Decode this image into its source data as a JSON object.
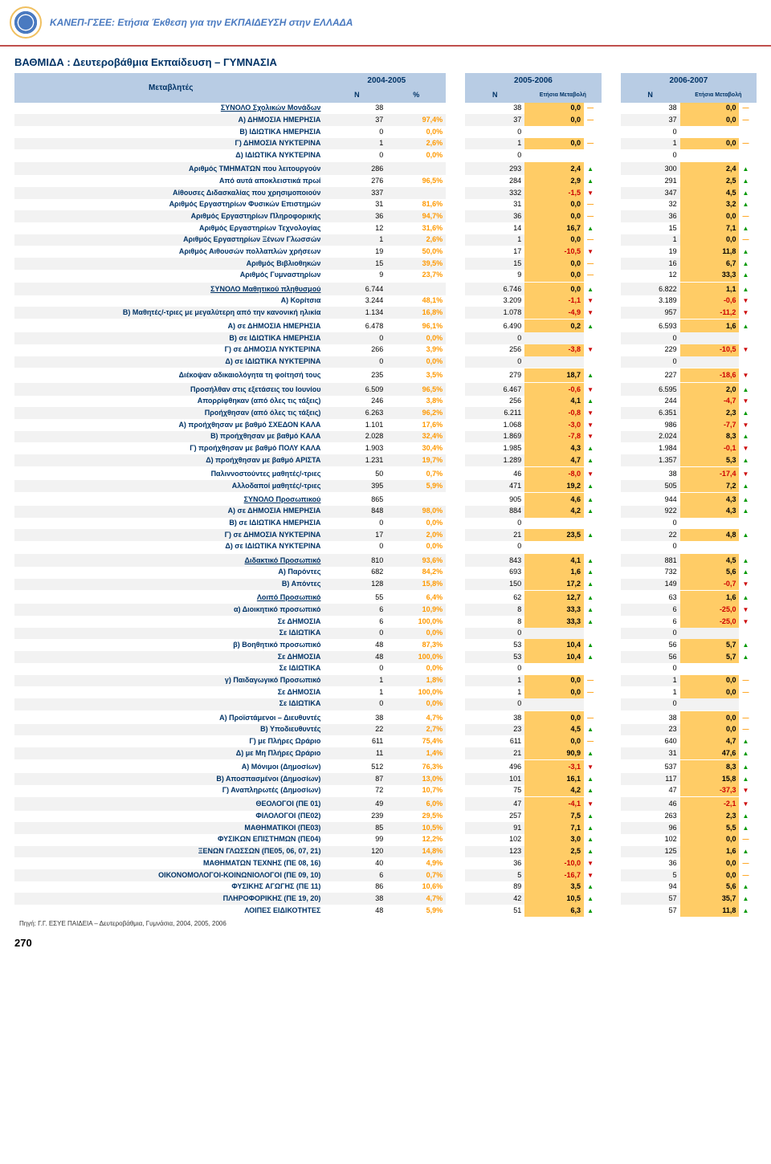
{
  "header_title": "ΚΑΝΕΠ-ΓΣΕΕ: Ετήσια Έκθεση για την ΕΚΠΑΙΔΕΥΣΗ στην ΕΛΛΑΔΑ",
  "section_title": "ΒΑΘΜΙΔΑ :  Δευτεροβάθμια Εκπαίδευση – ΓΥΜΝΑΣΙΑ",
  "meta_label": "Μεταβλητές",
  "years": [
    "2004-2005",
    "2005-2006",
    "2006-2007"
  ],
  "sub_headers": [
    "Ν",
    "%",
    "Ν",
    "Ετήσια Μεταβολή",
    "Ν",
    "Ετήσια Μεταβολή"
  ],
  "source": "Πηγή: Γ.Γ. ΕΣΥΕ ΠΑΙΔΕΙΑ – Δευτεροβάθμια, Γυμνάσια, 2004, 2005, 2006",
  "page_number": "270",
  "rows": [
    {
      "l": "ΣΥΝΟΛΟ Σχολικών Μονάδων",
      "u": 1,
      "n1": "38",
      "p1": "",
      "n2": "38",
      "c2": "0,0",
      "a2": "f",
      "n3": "38",
      "c3": "0,0",
      "a3": "f"
    },
    {
      "l": "Α) ΔΗΜΟΣΙΑ ΗΜΕΡΗΣΙΑ",
      "n1": "37",
      "p1": "97,4%",
      "n2": "37",
      "c2": "0,0",
      "a2": "f",
      "n3": "37",
      "c3": "0,0",
      "a3": "f"
    },
    {
      "l": "Β) ΙΔΙΩΤΙΚΑ ΗΜΕΡΗΣΙΑ",
      "n1": "0",
      "p1": "0,0%",
      "n2": "0",
      "c2": "",
      "a2": "",
      "n3": "0",
      "c3": "",
      "a3": ""
    },
    {
      "l": "Γ) ΔΗΜΟΣΙΑ ΝΥΚΤΕΡΙΝΑ",
      "n1": "1",
      "p1": "2,6%",
      "n2": "1",
      "c2": "0,0",
      "a2": "f",
      "n3": "1",
      "c3": "0,0",
      "a3": "f"
    },
    {
      "l": "Δ) ΙΔΙΩΤΙΚΑ ΝΥΚΤΕΡΙΝΑ",
      "n1": "0",
      "p1": "0,0%",
      "n2": "0",
      "c2": "",
      "a2": "",
      "n3": "0",
      "c3": "",
      "a3": ""
    },
    {
      "l": "Αριθμός ΤΜΗΜΑΤΩΝ που λειτουργούν",
      "g": 1,
      "n1": "286",
      "p1": "",
      "n2": "293",
      "c2": "2,4",
      "a2": "u",
      "n3": "300",
      "c3": "2,4",
      "a3": "u"
    },
    {
      "l": "Από αυτά αποκλειστικά πρωί",
      "n1": "276",
      "p1": "96,5%",
      "n2": "284",
      "c2": "2,9",
      "a2": "u",
      "n3": "291",
      "c3": "2,5",
      "a3": "u"
    },
    {
      "l": "Αίθουσες Διδασκαλίας που χρησιμοποιούν",
      "n1": "337",
      "p1": "",
      "n2": "332",
      "c2": "-1,5",
      "a2": "d",
      "n3": "347",
      "c3": "4,5",
      "a3": "u"
    },
    {
      "l": "Αριθμός Εργαστηρίων Φυσικών Επιστημών",
      "n1": "31",
      "p1": "81,6%",
      "n2": "31",
      "c2": "0,0",
      "a2": "f",
      "n3": "32",
      "c3": "3,2",
      "a3": "u"
    },
    {
      "l": "Αριθμός Εργαστηρίων Πληροφορικής",
      "n1": "36",
      "p1": "94,7%",
      "n2": "36",
      "c2": "0,0",
      "a2": "f",
      "n3": "36",
      "c3": "0,0",
      "a3": "f"
    },
    {
      "l": "Αριθμός Εργαστηρίων Τεχνολογίας",
      "n1": "12",
      "p1": "31,6%",
      "n2": "14",
      "c2": "16,7",
      "a2": "u",
      "n3": "15",
      "c3": "7,1",
      "a3": "u"
    },
    {
      "l": "Αριθμός Εργαστηρίων Ξένων Γλωσσών",
      "n1": "1",
      "p1": "2,6%",
      "n2": "1",
      "c2": "0,0",
      "a2": "f",
      "n3": "1",
      "c3": "0,0",
      "a3": "f"
    },
    {
      "l": "Αριθμός Αιθουσών πολλαπλών χρήσεων",
      "n1": "19",
      "p1": "50,0%",
      "n2": "17",
      "c2": "-10,5",
      "a2": "d",
      "n3": "19",
      "c3": "11,8",
      "a3": "u"
    },
    {
      "l": "Αριθμός Βιβλιοθηκών",
      "n1": "15",
      "p1": "39,5%",
      "n2": "15",
      "c2": "0,0",
      "a2": "f",
      "n3": "16",
      "c3": "6,7",
      "a3": "u"
    },
    {
      "l": "Αριθμός Γυμναστηρίων",
      "n1": "9",
      "p1": "23,7%",
      "n2": "9",
      "c2": "0,0",
      "a2": "f",
      "n3": "12",
      "c3": "33,3",
      "a3": "u"
    },
    {
      "l": "ΣΥΝΟΛΟ Μαθητικού πληθυσμού",
      "u": 1,
      "g": 1,
      "n1": "6.744",
      "p1": "",
      "n2": "6.746",
      "c2": "0,0",
      "a2": "u",
      "n3": "6.822",
      "c3": "1,1",
      "a3": "u"
    },
    {
      "l": "Α) Κορίτσια",
      "n1": "3.244",
      "p1": "48,1%",
      "n2": "3.209",
      "c2": "-1,1",
      "a2": "d",
      "n3": "3.189",
      "c3": "-0,6",
      "a3": "d"
    },
    {
      "l": "Β) Μαθητές/-τριες με μεγαλύτερη από την κανονική ηλικία",
      "n1": "1.134",
      "p1": "16,8%",
      "n2": "1.078",
      "c2": "-4,9",
      "a2": "d",
      "n3": "957",
      "c3": "-11,2",
      "a3": "d"
    },
    {
      "l": "Α) σε ΔΗΜΟΣΙΑ ΗΜΕΡΗΣΙΑ",
      "g": 1,
      "n1": "6.478",
      "p1": "96,1%",
      "n2": "6.490",
      "c2": "0,2",
      "a2": "u",
      "n3": "6.593",
      "c3": "1,6",
      "a3": "u"
    },
    {
      "l": "Β) σε ΙΔΙΩΤΙΚΑ ΗΜΕΡΗΣΙΑ",
      "n1": "0",
      "p1": "0,0%",
      "n2": "0",
      "c2": "",
      "a2": "",
      "n3": "0",
      "c3": "",
      "a3": ""
    },
    {
      "l": "Γ) σε ΔΗΜΟΣΙΑ ΝΥΚΤΕΡΙΝΑ",
      "n1": "266",
      "p1": "3,9%",
      "n2": "256",
      "c2": "-3,8",
      "a2": "d",
      "n3": "229",
      "c3": "-10,5",
      "a3": "d"
    },
    {
      "l": "Δ) σε ΙΔΙΩΤΙΚΑ ΝΥΚΤΕΡΙΝΑ",
      "n1": "0",
      "p1": "0,0%",
      "n2": "0",
      "c2": "",
      "a2": "",
      "n3": "0",
      "c3": "",
      "a3": ""
    },
    {
      "l": "Διέκοψαν αδικαιολόγητα τη φοίτησή τους",
      "g": 1,
      "n1": "235",
      "p1": "3,5%",
      "n2": "279",
      "c2": "18,7",
      "a2": "u",
      "n3": "227",
      "c3": "-18,6",
      "a3": "d"
    },
    {
      "l": "Προσήλθαν στις εξετάσεις του Ιουνίου",
      "g": 1,
      "n1": "6.509",
      "p1": "96,5%",
      "n2": "6.467",
      "c2": "-0,6",
      "a2": "d",
      "n3": "6.595",
      "c3": "2,0",
      "a3": "u"
    },
    {
      "l": "Απορρίφθηκαν (από όλες τις τάξεις)",
      "n1": "246",
      "p1": "3,8%",
      "n2": "256",
      "c2": "4,1",
      "a2": "u",
      "n3": "244",
      "c3": "-4,7",
      "a3": "d"
    },
    {
      "l": "Προήχθησαν (από όλες τις τάξεις)",
      "n1": "6.263",
      "p1": "96,2%",
      "n2": "6.211",
      "c2": "-0,8",
      "a2": "d",
      "n3": "6.351",
      "c3": "2,3",
      "a3": "u"
    },
    {
      "l": "Α) προήχθησαν με βαθμό ΣΧΕΔΟΝ ΚΑΛΑ",
      "n1": "1.101",
      "p1": "17,6%",
      "n2": "1.068",
      "c2": "-3,0",
      "a2": "d",
      "n3": "986",
      "c3": "-7,7",
      "a3": "d"
    },
    {
      "l": "Β) προήχθησαν με βαθμό ΚΑΛΑ",
      "n1": "2.028",
      "p1": "32,4%",
      "n2": "1.869",
      "c2": "-7,8",
      "a2": "d",
      "n3": "2.024",
      "c3": "8,3",
      "a3": "u"
    },
    {
      "l": "Γ) προήχθησαν με βαθμό ΠΟΛΥ ΚΑΛΑ",
      "n1": "1.903",
      "p1": "30,4%",
      "n2": "1.985",
      "c2": "4,3",
      "a2": "u",
      "n3": "1.984",
      "c3": "-0,1",
      "a3": "d"
    },
    {
      "l": "Δ) προήχθησαν με βαθμό ΑΡΙΣΤΑ",
      "n1": "1.231",
      "p1": "19,7%",
      "n2": "1.289",
      "c2": "4,7",
      "a2": "u",
      "n3": "1.357",
      "c3": "5,3",
      "a3": "u"
    },
    {
      "l": "Παλιννοστούντες μαθητές/-τριες",
      "g": 1,
      "n1": "50",
      "p1": "0,7%",
      "n2": "46",
      "c2": "-8,0",
      "a2": "d",
      "n3": "38",
      "c3": "-17,4",
      "a3": "d"
    },
    {
      "l": "Αλλοδαποί μαθητές/-τριες",
      "n1": "395",
      "p1": "5,9%",
      "n2": "471",
      "c2": "19,2",
      "a2": "u",
      "n3": "505",
      "c3": "7,2",
      "a3": "u"
    },
    {
      "l": "ΣΥΝΟΛΟ Προσωπικού",
      "u": 1,
      "g": 1,
      "n1": "865",
      "p1": "",
      "n2": "905",
      "c2": "4,6",
      "a2": "u",
      "n3": "944",
      "c3": "4,3",
      "a3": "u"
    },
    {
      "l": "Α) σε ΔΗΜΟΣΙΑ ΗΜΕΡΗΣΙΑ",
      "n1": "848",
      "p1": "98,0%",
      "n2": "884",
      "c2": "4,2",
      "a2": "u",
      "n3": "922",
      "c3": "4,3",
      "a3": "u"
    },
    {
      "l": "Β) σε ΙΔΙΩΤΙΚΑ ΗΜΕΡΗΣΙΑ",
      "n1": "0",
      "p1": "0,0%",
      "n2": "0",
      "c2": "",
      "a2": "",
      "n3": "0",
      "c3": "",
      "a3": ""
    },
    {
      "l": "Γ) σε ΔΗΜΟΣΙΑ ΝΥΚΤΕΡΙΝΑ",
      "n1": "17",
      "p1": "2,0%",
      "n2": "21",
      "c2": "23,5",
      "a2": "u",
      "n3": "22",
      "c3": "4,8",
      "a3": "u"
    },
    {
      "l": "Δ) σε ΙΔΙΩΤΙΚΑ ΝΥΚΤΕΡΙΝΑ",
      "n1": "0",
      "p1": "0,0%",
      "n2": "0",
      "c2": "",
      "a2": "",
      "n3": "0",
      "c3": "",
      "a3": ""
    },
    {
      "l": "Διδακτικό Προσωπικό",
      "u": 1,
      "g": 1,
      "n1": "810",
      "p1": "93,6%",
      "n2": "843",
      "c2": "4,1",
      "a2": "u",
      "n3": "881",
      "c3": "4,5",
      "a3": "u"
    },
    {
      "l": "Α) Παρόντες",
      "n1": "682",
      "p1": "84,2%",
      "n2": "693",
      "c2": "1,6",
      "a2": "u",
      "n3": "732",
      "c3": "5,6",
      "a3": "u"
    },
    {
      "l": "Β) Απόντες",
      "n1": "128",
      "p1": "15,8%",
      "n2": "150",
      "c2": "17,2",
      "a2": "u",
      "n3": "149",
      "c3": "-0,7",
      "a3": "d"
    },
    {
      "l": "Λοιπό Προσωπικό",
      "u": 1,
      "g": 1,
      "n1": "55",
      "p1": "6,4%",
      "n2": "62",
      "c2": "12,7",
      "a2": "u",
      "n3": "63",
      "c3": "1,6",
      "a3": "u"
    },
    {
      "l": "α) Διοικητικό προσωπικό",
      "n1": "6",
      "p1": "10,9%",
      "n2": "8",
      "c2": "33,3",
      "a2": "u",
      "n3": "6",
      "c3": "-25,0",
      "a3": "d"
    },
    {
      "l": "Σε ΔΗΜΟΣΙΑ",
      "n1": "6",
      "p1": "100,0%",
      "n2": "8",
      "c2": "33,3",
      "a2": "u",
      "n3": "6",
      "c3": "-25,0",
      "a3": "d"
    },
    {
      "l": "Σε ΙΔΙΩΤΙΚΑ",
      "n1": "0",
      "p1": "0,0%",
      "n2": "0",
      "c2": "",
      "a2": "",
      "n3": "0",
      "c3": "",
      "a3": ""
    },
    {
      "l": "β) Βοηθητικό προσωπικό",
      "n1": "48",
      "p1": "87,3%",
      "n2": "53",
      "c2": "10,4",
      "a2": "u",
      "n3": "56",
      "c3": "5,7",
      "a3": "u"
    },
    {
      "l": "Σε ΔΗΜΟΣΙΑ",
      "n1": "48",
      "p1": "100,0%",
      "n2": "53",
      "c2": "10,4",
      "a2": "u",
      "n3": "56",
      "c3": "5,7",
      "a3": "u"
    },
    {
      "l": "Σε ΙΔΙΩΤΙΚΑ",
      "n1": "0",
      "p1": "0,0%",
      "n2": "0",
      "c2": "",
      "a2": "",
      "n3": "0",
      "c3": "",
      "a3": ""
    },
    {
      "l": "γ) Παιδαγωγικό Προσωπικό",
      "n1": "1",
      "p1": "1,8%",
      "n2": "1",
      "c2": "0,0",
      "a2": "f",
      "n3": "1",
      "c3": "0,0",
      "a3": "f"
    },
    {
      "l": "Σε ΔΗΜΟΣΙΑ",
      "n1": "1",
      "p1": "100,0%",
      "n2": "1",
      "c2": "0,0",
      "a2": "f",
      "n3": "1",
      "c3": "0,0",
      "a3": "f"
    },
    {
      "l": "Σε ΙΔΙΩΤΙΚΑ",
      "n1": "0",
      "p1": "0,0%",
      "n2": "0",
      "c2": "",
      "a2": "",
      "n3": "0",
      "c3": "",
      "a3": ""
    },
    {
      "l": "Α) Προϊστάμενοι – Διευθυντές",
      "g": 1,
      "n1": "38",
      "p1": "4,7%",
      "n2": "38",
      "c2": "0,0",
      "a2": "f",
      "n3": "38",
      "c3": "0,0",
      "a3": "f"
    },
    {
      "l": "Β) Υποδιευθυντές",
      "n1": "22",
      "p1": "2,7%",
      "n2": "23",
      "c2": "4,5",
      "a2": "u",
      "n3": "23",
      "c3": "0,0",
      "a3": "f"
    },
    {
      "l": "Γ) με Πλήρες Ωράριο",
      "n1": "611",
      "p1": "75,4%",
      "n2": "611",
      "c2": "0,0",
      "a2": "f",
      "n3": "640",
      "c3": "4,7",
      "a3": "u"
    },
    {
      "l": "Δ) με Μη Πλήρες Ωράριο",
      "n1": "11",
      "p1": "1,4%",
      "n2": "21",
      "c2": "90,9",
      "a2": "u",
      "n3": "31",
      "c3": "47,6",
      "a3": "u"
    },
    {
      "l": "Α) Μόνιμοι (Δημοσίων)",
      "g": 1,
      "n1": "512",
      "p1": "76,3%",
      "n2": "496",
      "c2": "-3,1",
      "a2": "d",
      "n3": "537",
      "c3": "8,3",
      "a3": "u"
    },
    {
      "l": "Β) Αποσπασμένοι (Δημοσίων)",
      "n1": "87",
      "p1": "13,0%",
      "n2": "101",
      "c2": "16,1",
      "a2": "u",
      "n3": "117",
      "c3": "15,8",
      "a3": "u"
    },
    {
      "l": "Γ) Αναπληρωτές (Δημοσίων)",
      "n1": "72",
      "p1": "10,7%",
      "n2": "75",
      "c2": "4,2",
      "a2": "u",
      "n3": "47",
      "c3": "-37,3",
      "a3": "d"
    },
    {
      "l": "ΘΕΟΛΟΓΟΙ (ΠΕ 01)",
      "g": 1,
      "n1": "49",
      "p1": "6,0%",
      "n2": "47",
      "c2": "-4,1",
      "a2": "d",
      "n3": "46",
      "c3": "-2,1",
      "a3": "d"
    },
    {
      "l": "ΦΙΛΟΛΟΓΟΙ (ΠΕ02)",
      "n1": "239",
      "p1": "29,5%",
      "n2": "257",
      "c2": "7,5",
      "a2": "u",
      "n3": "263",
      "c3": "2,3",
      "a3": "u"
    },
    {
      "l": "ΜΑΘΗΜΑΤΙΚΟΙ (ΠΕ03)",
      "n1": "85",
      "p1": "10,5%",
      "n2": "91",
      "c2": "7,1",
      "a2": "u",
      "n3": "96",
      "c3": "5,5",
      "a3": "u"
    },
    {
      "l": "ΦΥΣΙΚΩΝ ΕΠΙΣΤΗΜΩΝ (ΠΕ04)",
      "n1": "99",
      "p1": "12,2%",
      "n2": "102",
      "c2": "3,0",
      "a2": "u",
      "n3": "102",
      "c3": "0,0",
      "a3": "f"
    },
    {
      "l": "ΞΕΝΩΝ ΓΛΩΣΣΩΝ (ΠΕ05, 06, 07, 21)",
      "n1": "120",
      "p1": "14,8%",
      "n2": "123",
      "c2": "2,5",
      "a2": "u",
      "n3": "125",
      "c3": "1,6",
      "a3": "u"
    },
    {
      "l": "ΜΑΘΗΜΑΤΩΝ ΤΕΧΝΗΣ (ΠΕ 08, 16)",
      "n1": "40",
      "p1": "4,9%",
      "n2": "36",
      "c2": "-10,0",
      "a2": "d",
      "n3": "36",
      "c3": "0,0",
      "a3": "f"
    },
    {
      "l": "ΟΙΚΟΝΟΜΟΛΟΓΟΙ-ΚΟΙΝΩΝΙΟΛΟΓΟΙ (ΠΕ 09, 10)",
      "n1": "6",
      "p1": "0,7%",
      "n2": "5",
      "c2": "-16,7",
      "a2": "d",
      "n3": "5",
      "c3": "0,0",
      "a3": "f"
    },
    {
      "l": "ΦΥΣΙΚΗΣ ΑΓΩΓΗΣ (ΠΕ 11)",
      "n1": "86",
      "p1": "10,6%",
      "n2": "89",
      "c2": "3,5",
      "a2": "u",
      "n3": "94",
      "c3": "5,6",
      "a3": "u"
    },
    {
      "l": "ΠΛΗΡΟΦΟΡΙΚΗΣ (ΠΕ 19, 20)",
      "n1": "38",
      "p1": "4,7%",
      "n2": "42",
      "c2": "10,5",
      "a2": "u",
      "n3": "57",
      "c3": "35,7",
      "a3": "u"
    },
    {
      "l": "ΛΟΙΠΕΣ ΕΙΔΙΚΟΤΗΤΕΣ",
      "n1": "48",
      "p1": "5,9%",
      "n2": "51",
      "c2": "6,3",
      "a2": "u",
      "n3": "57",
      "c3": "11,8",
      "a3": "u"
    }
  ]
}
